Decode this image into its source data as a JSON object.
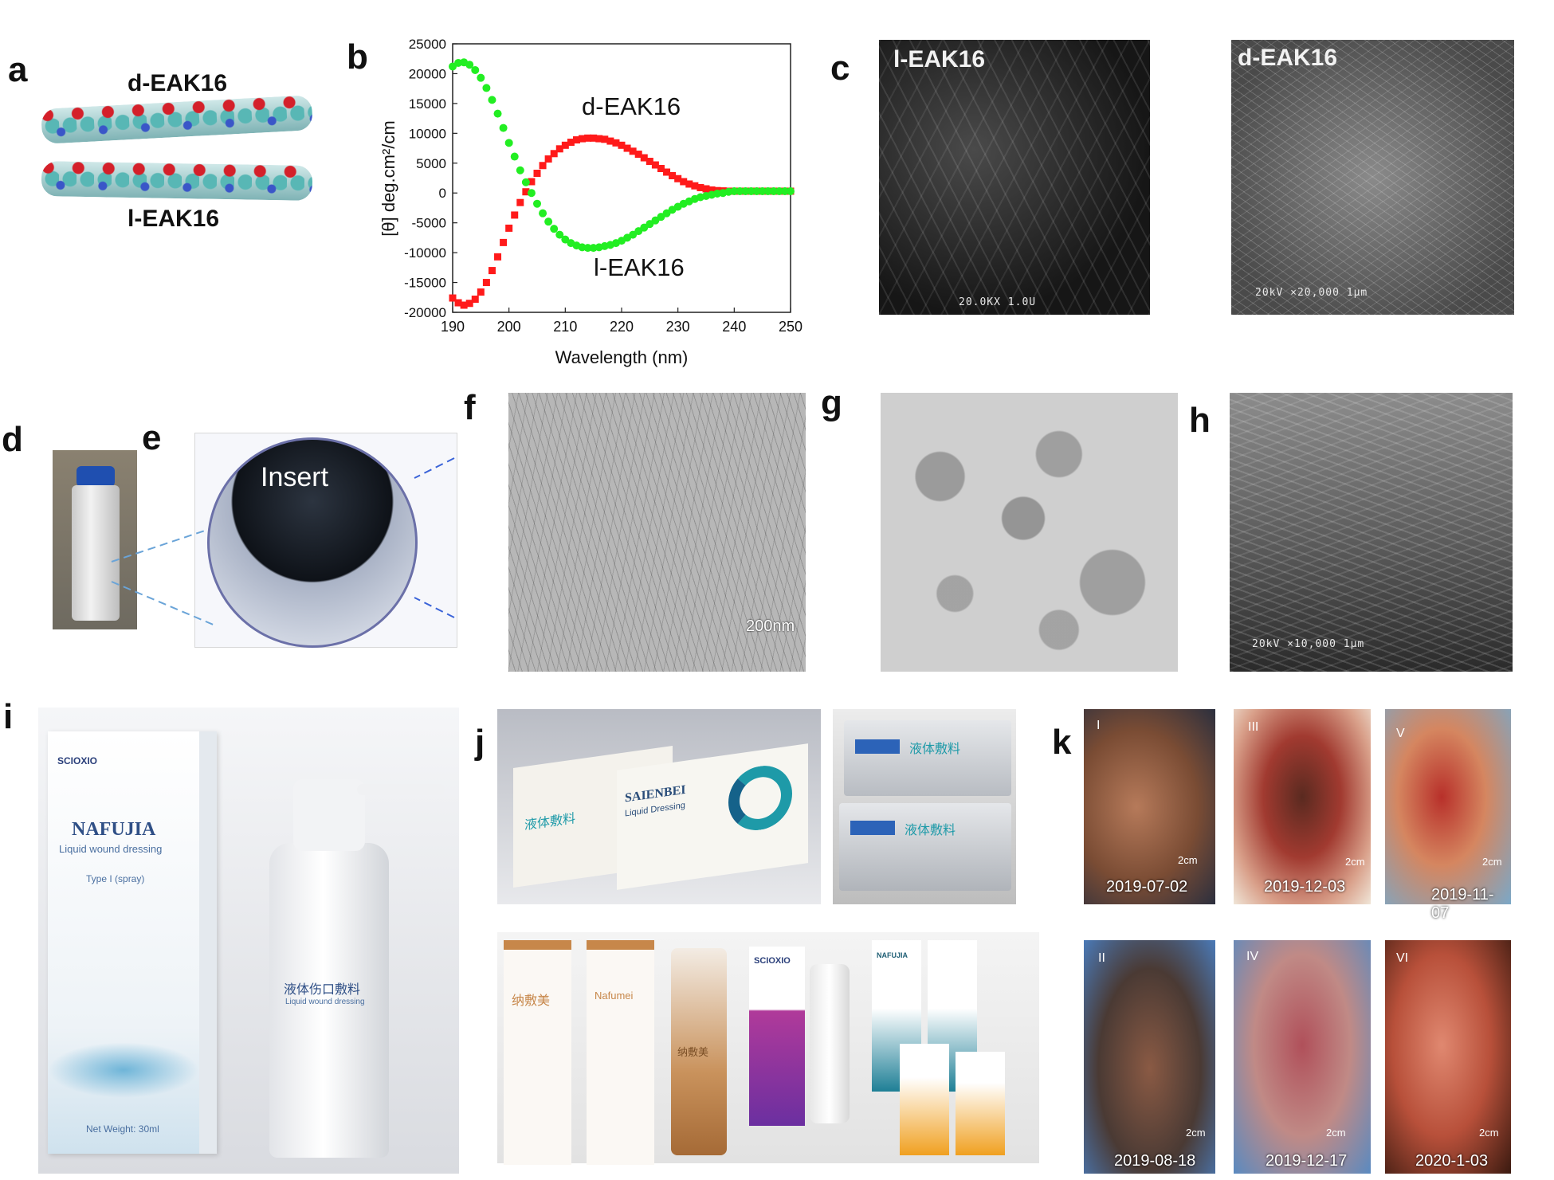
{
  "panel_letters": {
    "a": "a",
    "b": "b",
    "c": "c",
    "d": "d",
    "e": "e",
    "f": "f",
    "g": "g",
    "h": "h",
    "i": "i",
    "j": "j",
    "k": "k"
  },
  "panel_a": {
    "top_label": "d-EAK16",
    "bottom_label": "l-EAK16"
  },
  "chart_data": {
    "type": "scatter",
    "xlabel": "Wavelength (nm)",
    "ylabel": "[θ] deg.cm²/cm",
    "xlim": [
      190,
      250
    ],
    "ylim": [
      -20000,
      25000
    ],
    "xticks": [
      190,
      200,
      210,
      220,
      230,
      240,
      250
    ],
    "yticks": [
      25000,
      20000,
      15000,
      10000,
      5000,
      0,
      -5000,
      -10000,
      -15000,
      -20000
    ],
    "annotations": [
      "d-EAK16",
      "l-EAK16"
    ],
    "series": [
      {
        "name": "d-EAK16",
        "color": "#ff1a1a",
        "marker": "square",
        "x": [
          190,
          191,
          192,
          193,
          194,
          195,
          196,
          197,
          198,
          199,
          200,
          201,
          202,
          203,
          204,
          205,
          206,
          207,
          208,
          209,
          210,
          211,
          212,
          213,
          214,
          215,
          216,
          217,
          218,
          219,
          220,
          221,
          222,
          223,
          224,
          225,
          226,
          227,
          228,
          229,
          230,
          231,
          232,
          233,
          234,
          235,
          236,
          237,
          238,
          239,
          240,
          241,
          242,
          243,
          244,
          245,
          246,
          247,
          248,
          249,
          250
        ],
        "y": [
          -17600,
          -18400,
          -18800,
          -18500,
          -17800,
          -16600,
          -15000,
          -13000,
          -10700,
          -8300,
          -5900,
          -3700,
          -1600,
          200,
          1900,
          3300,
          4600,
          5700,
          6600,
          7400,
          8000,
          8500,
          8900,
          9100,
          9200,
          9200,
          9100,
          9000,
          8700,
          8400,
          8000,
          7500,
          7000,
          6500,
          5900,
          5300,
          4700,
          4100,
          3500,
          2900,
          2400,
          1900,
          1500,
          1200,
          900,
          700,
          500,
          400,
          350,
          300,
          300,
          300,
          300,
          300,
          300,
          300,
          300,
          300,
          300,
          300,
          300
        ]
      },
      {
        "name": "l-EAK16",
        "color": "#22ee22",
        "marker": "circle",
        "x": [
          190,
          191,
          192,
          193,
          194,
          195,
          196,
          197,
          198,
          199,
          200,
          201,
          202,
          203,
          204,
          205,
          206,
          207,
          208,
          209,
          210,
          211,
          212,
          213,
          214,
          215,
          216,
          217,
          218,
          219,
          220,
          221,
          222,
          223,
          224,
          225,
          226,
          227,
          228,
          229,
          230,
          231,
          232,
          233,
          234,
          235,
          236,
          237,
          238,
          239,
          240,
          241,
          242,
          243,
          244,
          245,
          246,
          247,
          248,
          249,
          250
        ],
        "y": [
          21200,
          21800,
          21900,
          21500,
          20600,
          19300,
          17600,
          15600,
          13300,
          10900,
          8400,
          6100,
          3800,
          1800,
          0,
          -1800,
          -3400,
          -4800,
          -6000,
          -7000,
          -7800,
          -8400,
          -8800,
          -9100,
          -9200,
          -9200,
          -9100,
          -8900,
          -8700,
          -8400,
          -8000,
          -7500,
          -7000,
          -6400,
          -5800,
          -5200,
          -4600,
          -4000,
          -3400,
          -2800,
          -2300,
          -1800,
          -1400,
          -1000,
          -700,
          -500,
          -300,
          -100,
          0,
          200,
          300,
          300,
          300,
          300,
          300,
          300,
          300,
          300,
          300,
          300,
          300
        ]
      }
    ]
  },
  "panel_c": {
    "left_label": "l-EAK16",
    "right_label": "d-EAK16",
    "left_scale": "20.0KX    1.0U",
    "right_scale": "20kV   ×20,000   1µm"
  },
  "panel_e": {
    "insert_label": "Insert"
  },
  "panel_f": {
    "scale": "200nm"
  },
  "panel_h": {
    "scale": "20kV   ×10,000   1µm"
  },
  "panel_i": {
    "brand": "SCIOXIO",
    "box_title": "NAFUJIA",
    "box_subtitle": "Liquid wound dressing",
    "box_type": "Type I (spray)",
    "box_weight": "Net Weight: 30ml",
    "bottle_cn": "液体伤口敷料",
    "bottle_en": "Liquid wound dressing"
  },
  "panel_j": {
    "box1": "SAIENBEI",
    "box1_sub": "Liquid Dressing",
    "box_cn": "液体敷料",
    "sachet_cn": "液体敷料",
    "lower_items": [
      "纳敷美",
      "Nafumei",
      "纳敷美",
      "SCIOXIO",
      "NAFUJIA"
    ]
  },
  "panel_k": {
    "photos": [
      {
        "id": "I",
        "date": "2019-07-02",
        "scale": "2cm"
      },
      {
        "id": "III",
        "date": "2019-12-03",
        "scale": "2cm"
      },
      {
        "id": "V",
        "date": "2019-11-07",
        "scale": "2cm"
      },
      {
        "id": "II",
        "date": "2019-08-18",
        "scale": "2cm"
      },
      {
        "id": "IV",
        "date": "2019-12-17",
        "scale": "2cm"
      },
      {
        "id": "VI",
        "date": "2020-1-03",
        "scale": "2cm"
      }
    ]
  },
  "colors": {
    "d_series": "#ff1a1a",
    "l_series": "#22ee22",
    "accent_teal": "#1e9aa8"
  }
}
